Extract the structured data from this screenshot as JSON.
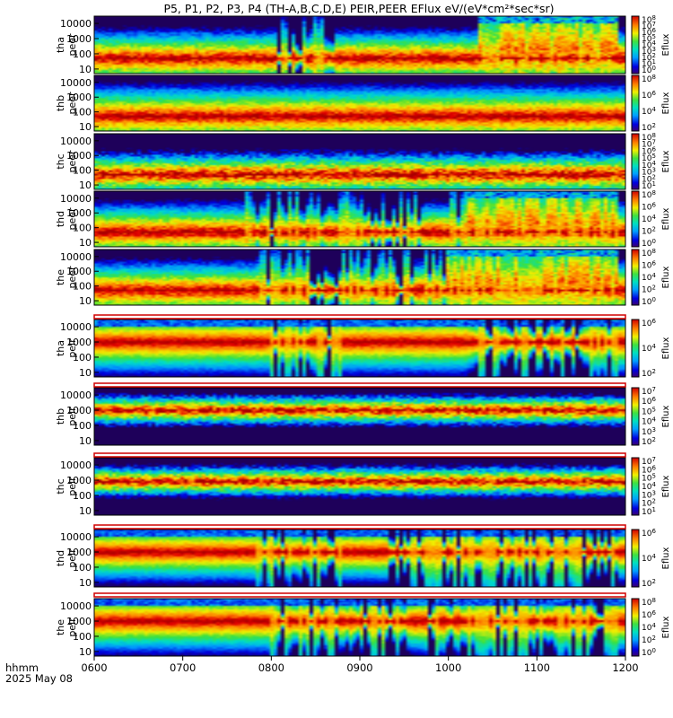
{
  "title": "P5, P1, P2, P3, P4 (TH-A,B,C,D,E) PEIR,PEER EFlux eV/(eV*cm²*sec*sr)",
  "footer": {
    "axis_label": "hhmm",
    "date": "2025 May 08"
  },
  "chart_data": {
    "type": "heatmap",
    "x": [
      "0600",
      "0700",
      "0800",
      "0900",
      "1000",
      "1100",
      "1200"
    ],
    "xlim": [
      "0600",
      "1200"
    ],
    "panels": [
      {
        "label_line1": "tha",
        "label_line2": "peer",
        "yticks": [
          "10000",
          "1000",
          "100",
          "10"
        ],
        "ylim": [
          5,
          30000
        ],
        "log_scale": true,
        "cbar_title": "Eflux",
        "cbar_ticks": [
          "10^8",
          "10^7",
          "10^6",
          "10^5",
          "10^4",
          "10^3",
          "10^2",
          "10^1",
          "10^0"
        ],
        "style": "peer-a"
      },
      {
        "label_line1": "thb",
        "label_line2": "peer",
        "yticks": [
          "10000",
          "1000",
          "100",
          "10"
        ],
        "ylim": [
          5,
          30000
        ],
        "log_scale": true,
        "cbar_title": "Eflux",
        "cbar_ticks": [
          "10^8",
          "10^6",
          "10^4",
          "10^2"
        ],
        "style": "peer-b"
      },
      {
        "label_line1": "thc",
        "label_line2": "peer",
        "yticks": [
          "10000",
          "1000",
          "100",
          "10"
        ],
        "ylim": [
          5,
          30000
        ],
        "log_scale": true,
        "cbar_title": "Eflux",
        "cbar_ticks": [
          "10^8",
          "10^7",
          "10^6",
          "10^5",
          "10^4",
          "10^3",
          "10^2",
          "10^1"
        ],
        "style": "peer-c"
      },
      {
        "label_line1": "thd",
        "label_line2": "peer",
        "yticks": [
          "10000",
          "1000",
          "100",
          "10"
        ],
        "ylim": [
          5,
          30000
        ],
        "log_scale": true,
        "cbar_title": "Eflux",
        "cbar_ticks": [
          "10^8",
          "10^6",
          "10^4",
          "10^2",
          "10^0"
        ],
        "style": "peer-d"
      },
      {
        "label_line1": "the",
        "label_line2": "peer",
        "yticks": [
          "10000",
          "1000",
          "100",
          "10"
        ],
        "ylim": [
          5,
          30000
        ],
        "log_scale": true,
        "cbar_title": "Eflux",
        "cbar_ticks": [
          "10^8",
          "10^6",
          "10^4",
          "10^2",
          "10^0"
        ],
        "style": "peer-e"
      },
      {
        "label_line1": "tha",
        "label_line2": "peir",
        "yticks": [
          "10000",
          "1000",
          "100",
          "10"
        ],
        "ylim": [
          5,
          30000
        ],
        "log_scale": true,
        "cbar_title": "Eflux",
        "cbar_ticks": [
          "10^6",
          "10^4",
          "10^2"
        ],
        "style": "peir-a"
      },
      {
        "label_line1": "thb",
        "label_line2": "peir",
        "yticks": [
          "10000",
          "1000",
          "100",
          "10"
        ],
        "ylim": [
          5,
          30000
        ],
        "log_scale": true,
        "cbar_title": "Eflux",
        "cbar_ticks": [
          "10^7",
          "10^6",
          "10^5",
          "10^4",
          "10^3",
          "10^2"
        ],
        "style": "peir-b"
      },
      {
        "label_line1": "thc",
        "label_line2": "peir",
        "yticks": [
          "10000",
          "1000",
          "100",
          "10"
        ],
        "ylim": [
          5,
          30000
        ],
        "log_scale": true,
        "cbar_title": "Eflux",
        "cbar_ticks": [
          "10^7",
          "10^6",
          "10^5",
          "10^4",
          "10^3",
          "10^2",
          "10^1"
        ],
        "style": "peir-c"
      },
      {
        "label_line1": "thd",
        "label_line2": "peir",
        "yticks": [
          "10000",
          "1000",
          "100",
          "10"
        ],
        "ylim": [
          5,
          30000
        ],
        "log_scale": true,
        "cbar_title": "Eflux",
        "cbar_ticks": [
          "10^6",
          "10^4",
          "10^2"
        ],
        "style": "peir-d"
      },
      {
        "label_line1": "the",
        "label_line2": "peir",
        "yticks": [
          "10000",
          "1000",
          "100",
          "10"
        ],
        "ylim": [
          5,
          30000
        ],
        "log_scale": true,
        "cbar_title": "Eflux",
        "cbar_ticks": [
          "10^8",
          "10^6",
          "10^4",
          "10^2",
          "10^0"
        ],
        "style": "peir-e"
      }
    ]
  }
}
